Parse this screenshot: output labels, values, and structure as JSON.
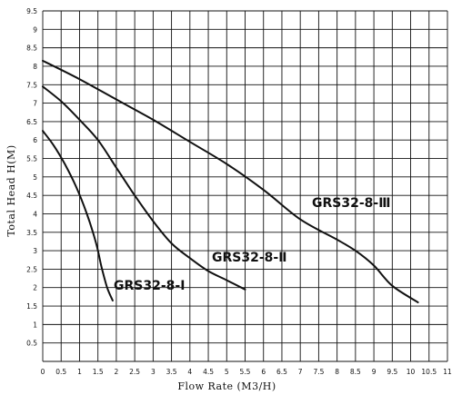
{
  "chart_data": {
    "type": "line",
    "title": "",
    "xlabel": "Flow Rate (M3/H)",
    "ylabel": "Total Head H(M)",
    "xlim": [
      0,
      11
    ],
    "ylim": [
      0,
      9.5
    ],
    "x_ticks": [
      "0",
      "0.5",
      "1",
      "1.5",
      "2",
      "2.5",
      "3",
      "3.5",
      "4",
      "4.5",
      "5",
      "5.5",
      "6",
      "6.5",
      "7",
      "7.5",
      "8",
      "8.5",
      "9",
      "9.5",
      "10",
      "10.5",
      "11"
    ],
    "y_ticks": [
      "0.5",
      "1",
      "1.5",
      "2",
      "2.5",
      "3",
      "3.5",
      "4",
      "4.5",
      "5",
      "5.5",
      "6",
      "6.5",
      "7",
      "7.5",
      "8",
      "8.5",
      "9",
      "9.5"
    ],
    "grid": true,
    "legend": "none",
    "series": [
      {
        "name": "GRS32-8-Ⅰ",
        "x": [
          0,
          0.3,
          0.6,
          0.9,
          1.2,
          1.45,
          1.6,
          1.75,
          1.9
        ],
        "y": [
          6.25,
          5.85,
          5.35,
          4.75,
          4.0,
          3.2,
          2.55,
          2.0,
          1.65
        ]
      },
      {
        "name": "GRS32-8-Ⅱ",
        "x": [
          0,
          0.5,
          1.0,
          1.5,
          2.0,
          2.5,
          3.0,
          3.5,
          4.0,
          4.5,
          5.0,
          5.5
        ],
        "y": [
          7.45,
          7.05,
          6.55,
          6.0,
          5.25,
          4.5,
          3.8,
          3.2,
          2.8,
          2.45,
          2.2,
          1.95
        ]
      },
      {
        "name": "GRS32-8-Ⅲ",
        "x": [
          0,
          1,
          2,
          3,
          4,
          5,
          6,
          7,
          8,
          8.5,
          9,
          9.5,
          10.2
        ],
        "y": [
          8.15,
          7.65,
          7.1,
          6.55,
          5.95,
          5.35,
          4.65,
          3.85,
          3.3,
          3.0,
          2.6,
          2.05,
          1.6
        ]
      }
    ],
    "annotations": [
      {
        "text": "GRS32-8-Ⅰ",
        "series": 0
      },
      {
        "text": "GRS32-8-Ⅱ",
        "series": 1
      },
      {
        "text": "GRS32-8-Ⅲ",
        "series": 2
      }
    ]
  }
}
